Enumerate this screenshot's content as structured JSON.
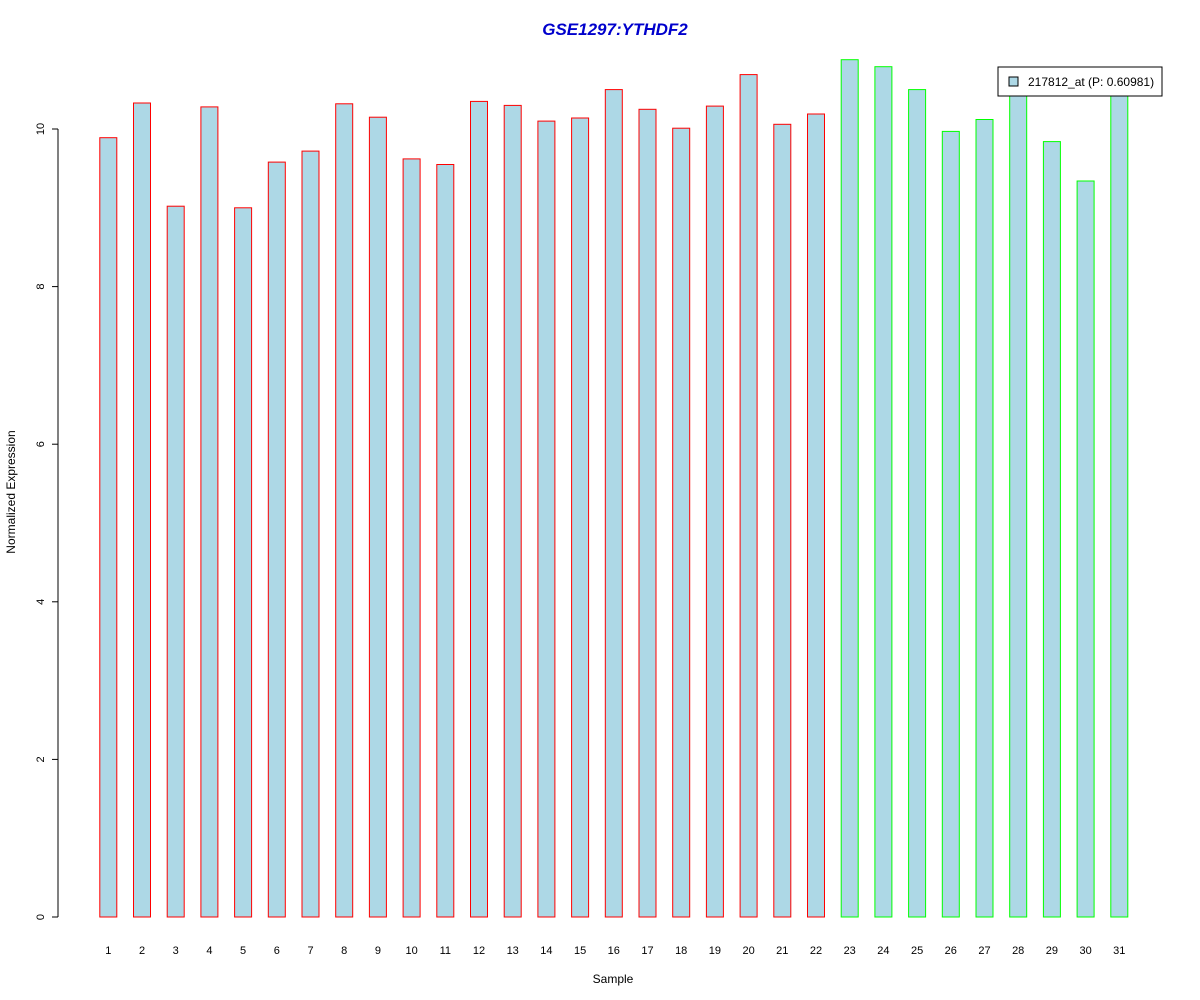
{
  "chart_data": {
    "type": "bar",
    "title": "GSE1297:YTHDF2",
    "xlabel": "Sample",
    "ylabel": "Normalized Expression",
    "categories": [
      "1",
      "2",
      "3",
      "4",
      "5",
      "6",
      "7",
      "8",
      "9",
      "10",
      "11",
      "12",
      "13",
      "14",
      "15",
      "16",
      "17",
      "18",
      "19",
      "20",
      "21",
      "22",
      "23",
      "24",
      "25",
      "26",
      "27",
      "28",
      "29",
      "30",
      "31"
    ],
    "series": [
      {
        "name": "217812_at (P: 0.60981)",
        "values": [
          9.89,
          10.33,
          9.02,
          10.28,
          9.0,
          9.58,
          9.72,
          10.32,
          10.15,
          9.62,
          9.55,
          10.35,
          10.3,
          10.1,
          10.14,
          10.5,
          10.25,
          10.01,
          10.29,
          10.69,
          10.06,
          10.19,
          10.88,
          10.79,
          10.5,
          9.97,
          10.12,
          10.48,
          9.84,
          9.34,
          10.48
        ]
      }
    ],
    "group_colors": [
      "#ff0000",
      "#ff0000",
      "#ff0000",
      "#ff0000",
      "#ff0000",
      "#ff0000",
      "#ff0000",
      "#ff0000",
      "#ff0000",
      "#ff0000",
      "#ff0000",
      "#ff0000",
      "#ff0000",
      "#ff0000",
      "#ff0000",
      "#ff0000",
      "#ff0000",
      "#ff0000",
      "#ff0000",
      "#ff0000",
      "#ff0000",
      "#ff0000",
      "#00ff00",
      "#00ff00",
      "#00ff00",
      "#00ff00",
      "#00ff00",
      "#00ff00",
      "#00ff00",
      "#00ff00",
      "#00ff00"
    ],
    "bar_fill": "#add8e6",
    "yticks": [
      0,
      2,
      4,
      6,
      8,
      10
    ],
    "ylim": [
      0,
      10.88
    ],
    "grid": false,
    "legend_position": "top-right"
  }
}
